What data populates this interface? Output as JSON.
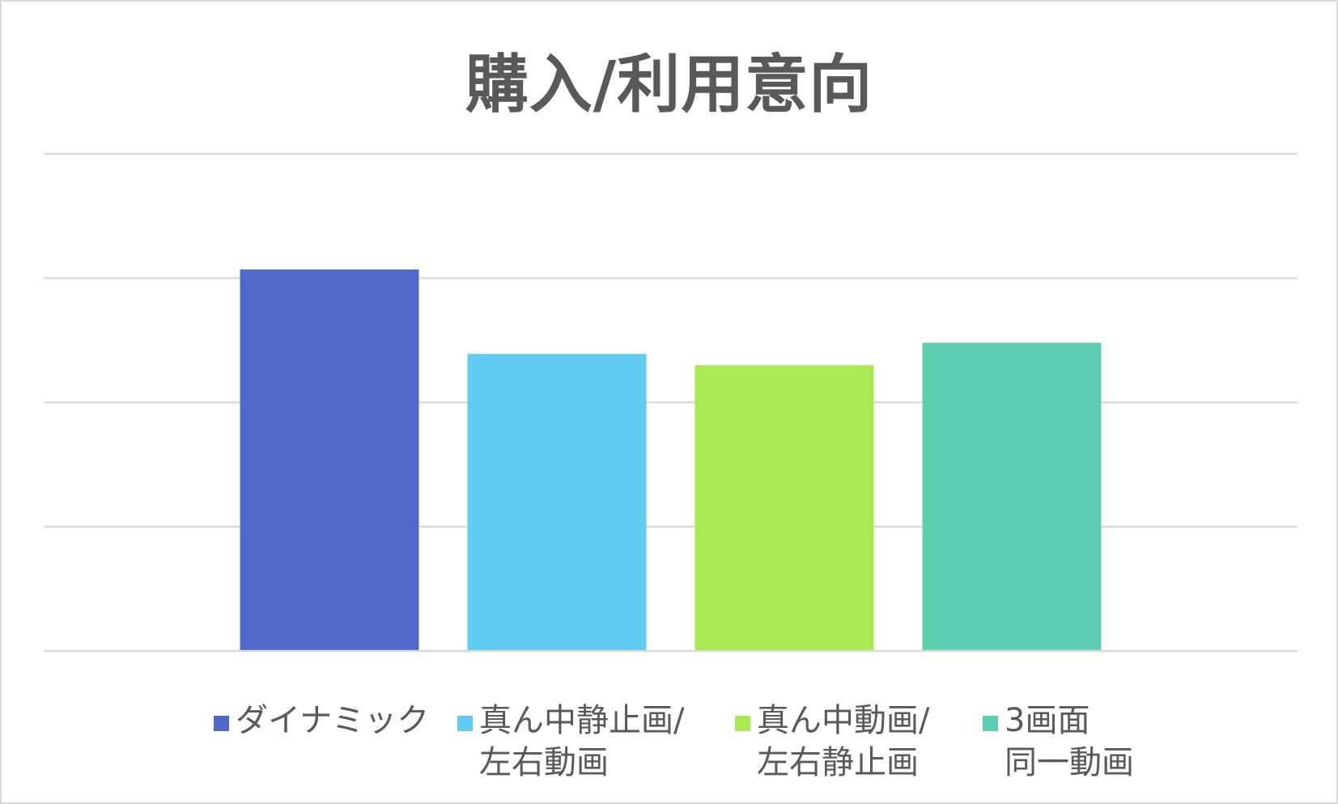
{
  "chart_data": {
    "type": "bar",
    "title": "購入/利用意向",
    "xlabel": "",
    "ylabel": "",
    "ylim": [
      0,
      4
    ],
    "grid": true,
    "y_tick_labels_visible": false,
    "legend_position": "bottom",
    "series": [
      {
        "name": "ダイナミック",
        "legend_label": "ダイナミック",
        "value": 3.07,
        "color": "#4F68C8"
      },
      {
        "name": "真ん中静止画/左右動画",
        "legend_label": "真ん中静止画/\n左右動画",
        "value": 2.39,
        "color": "#60CCF1"
      },
      {
        "name": "真ん中動画/左右静止画",
        "legend_label": "真ん中動画/\n左右静止画",
        "value": 2.3,
        "color": "#A9EA52"
      },
      {
        "name": "3画面同一動画",
        "legend_label": "3画面\n同一動画",
        "value": 2.48,
        "color": "#5DCEB2"
      }
    ]
  }
}
